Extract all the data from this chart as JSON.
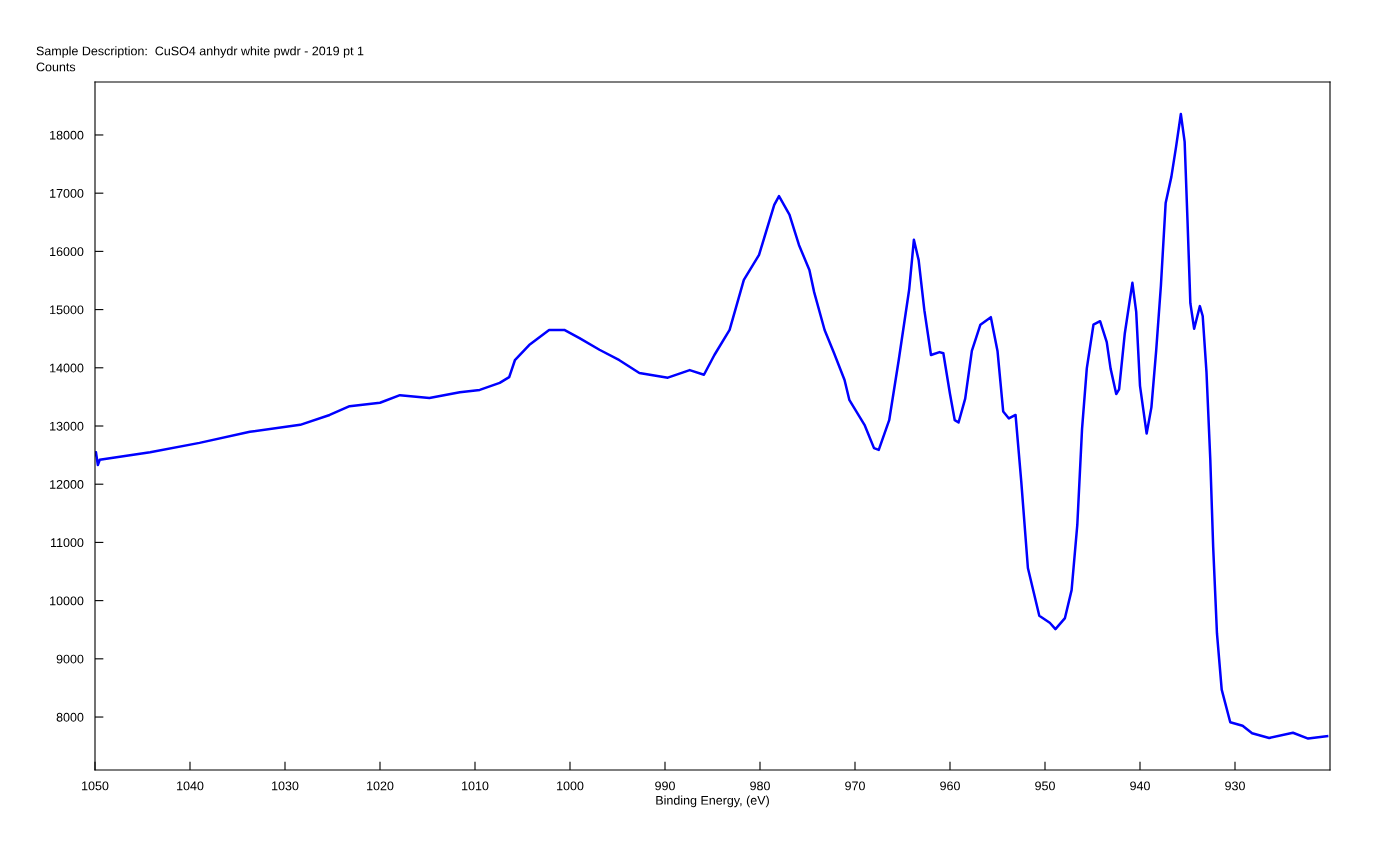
{
  "chart_data": {
    "type": "line",
    "title": "Sample Description:  CuSO4 anhydr white pwdr - 2019 pt 1",
    "ylabel": "Counts",
    "xlabel": "Binding Energy, (eV)",
    "xlim": [
      1050,
      920
    ],
    "xticks": [
      1050,
      1040,
      1030,
      1020,
      1010,
      1000,
      990,
      980,
      970,
      960,
      950,
      940,
      930
    ],
    "ylim": [
      7090,
      18910
    ],
    "yticks": [
      8000,
      9000,
      10000,
      11000,
      12000,
      13000,
      14000,
      15000,
      16000,
      17000,
      18000
    ],
    "marker": "none",
    "line_style": "solid",
    "series": [
      {
        "color": "#0000ff",
        "x": [
          1050.0,
          1049.9,
          1049.7,
          1049.5,
          1044.2,
          1039.0,
          1033.7,
          1028.4,
          1025.3,
          1023.2,
          1020.0,
          1017.9,
          1014.8,
          1011.6,
          1009.5,
          1007.4,
          1006.4,
          1005.8,
          1004.3,
          1002.2,
          1000.6,
          999.0,
          996.9,
          994.8,
          992.7,
          989.7,
          987.4,
          985.9,
          984.8,
          983.2,
          981.7,
          980.1,
          978.5,
          978.0,
          976.9,
          975.9,
          974.8,
          974.3,
          973.2,
          972.2,
          971.1,
          970.6,
          969.0,
          968.0,
          967.5,
          966.4,
          965.4,
          964.3,
          963.8,
          963.3,
          962.7,
          962.0,
          961.1,
          960.7,
          960.0,
          959.5,
          959.1,
          958.4,
          957.7,
          956.8,
          955.7,
          955.0,
          954.4,
          953.8,
          953.1,
          952.5,
          951.8,
          950.6,
          949.5,
          948.9,
          947.9,
          947.2,
          946.6,
          946.1,
          945.6,
          944.9,
          944.2,
          943.5,
          943.1,
          942.5,
          942.2,
          941.6,
          940.8,
          940.4,
          940.0,
          939.3,
          938.8,
          938.3,
          937.8,
          937.3,
          936.7,
          936.2,
          935.7,
          935.3,
          935.0,
          934.7,
          934.3,
          933.7,
          933.4,
          933.0,
          932.6,
          932.3,
          931.9,
          931.4,
          930.5,
          929.2,
          928.2,
          926.4,
          923.9,
          922.3,
          920.3
        ],
        "values": [
          12500,
          12550,
          12330,
          12420,
          12550,
          12710,
          12900,
          13020,
          13190,
          13340,
          13400,
          13530,
          13480,
          13580,
          13620,
          13740,
          13840,
          14130,
          14390,
          14650,
          14650,
          14510,
          14310,
          14130,
          13910,
          13830,
          13960,
          13880,
          14220,
          14650,
          15510,
          15940,
          16800,
          16950,
          16630,
          16110,
          15680,
          15300,
          14650,
          14250,
          13790,
          13450,
          13020,
          12620,
          12590,
          13100,
          14130,
          15340,
          16200,
          15850,
          14990,
          14220,
          14270,
          14250,
          13550,
          13100,
          13060,
          13470,
          14290,
          14740,
          14870,
          14290,
          13250,
          13130,
          13190,
          12050,
          10560,
          9740,
          9620,
          9510,
          9700,
          10180,
          11300,
          12950,
          13990,
          14740,
          14800,
          14440,
          13990,
          13550,
          13630,
          14590,
          15460,
          14960,
          13690,
          12870,
          13320,
          14290,
          15410,
          16830,
          17280,
          17800,
          18360,
          17880,
          16530,
          15110,
          14670,
          15060,
          14890,
          13920,
          12420,
          10930,
          9440,
          8470,
          7910,
          7850,
          7720,
          7640,
          7730,
          7630,
          7670
        ]
      }
    ]
  }
}
